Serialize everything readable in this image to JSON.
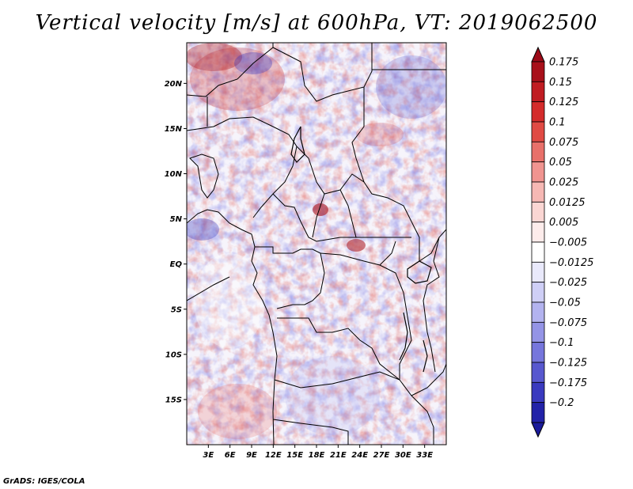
{
  "title": "Vertical velocity [m/s] at 600hPa, VT: 2019062500",
  "footer": "GrADS: IGES/COLA",
  "map": {
    "variable": "Vertical velocity",
    "units": "m/s",
    "level": "600hPa",
    "valid_time": "2019062500",
    "lat_range": [
      -20,
      24.5
    ],
    "lon_range": [
      0,
      36
    ],
    "lat_ticks": [
      {
        "value": 20,
        "label": "20N"
      },
      {
        "value": 15,
        "label": "15N"
      },
      {
        "value": 10,
        "label": "10N"
      },
      {
        "value": 5,
        "label": "5N"
      },
      {
        "value": 0,
        "label": "EQ"
      },
      {
        "value": -5,
        "label": "5S"
      },
      {
        "value": -10,
        "label": "10S"
      },
      {
        "value": -15,
        "label": "15S"
      }
    ],
    "lon_ticks": [
      {
        "value": 3,
        "label": "3E"
      },
      {
        "value": 6,
        "label": "6E"
      },
      {
        "value": 9,
        "label": "9E"
      },
      {
        "value": 12,
        "label": "12E"
      },
      {
        "value": 15,
        "label": "15E"
      },
      {
        "value": 18,
        "label": "18E"
      },
      {
        "value": 21,
        "label": "21E"
      },
      {
        "value": 24,
        "label": "24E"
      },
      {
        "value": 27,
        "label": "27E"
      },
      {
        "value": 30,
        "label": "30E"
      },
      {
        "value": 33,
        "label": "33E"
      }
    ]
  },
  "colorbar": {
    "levels": [
      {
        "label": "0.175",
        "color": "#a8101a"
      },
      {
        "label": "0.15",
        "color": "#c01c22"
      },
      {
        "label": "0.125",
        "color": "#d42b2b"
      },
      {
        "label": "0.1",
        "color": "#e04a44"
      },
      {
        "label": "0.075",
        "color": "#e8706a"
      },
      {
        "label": "0.05",
        "color": "#f09490"
      },
      {
        "label": "0.025",
        "color": "#f6b8b4"
      },
      {
        "label": "0.0125",
        "color": "#fad6d3"
      },
      {
        "label": "0.005",
        "color": "#fdeceb"
      },
      {
        "label": "-0.005",
        "color": "#ffffff"
      },
      {
        "label": "-0.0125",
        "color": "#e9e9fb"
      },
      {
        "label": "-0.025",
        "color": "#cfcff6"
      },
      {
        "label": "-0.05",
        "color": "#b3b3ef"
      },
      {
        "label": "-0.075",
        "color": "#9494e6"
      },
      {
        "label": "-0.1",
        "color": "#7676dc"
      },
      {
        "label": "-0.125",
        "color": "#5858cf"
      },
      {
        "label": "-0.175",
        "color": "#3a3abf"
      },
      {
        "label": "-0.2",
        "color": "#2222a8"
      }
    ],
    "top_arrow_color": "#9c0a18",
    "bottom_arrow_color": "#1a1a9a"
  }
}
